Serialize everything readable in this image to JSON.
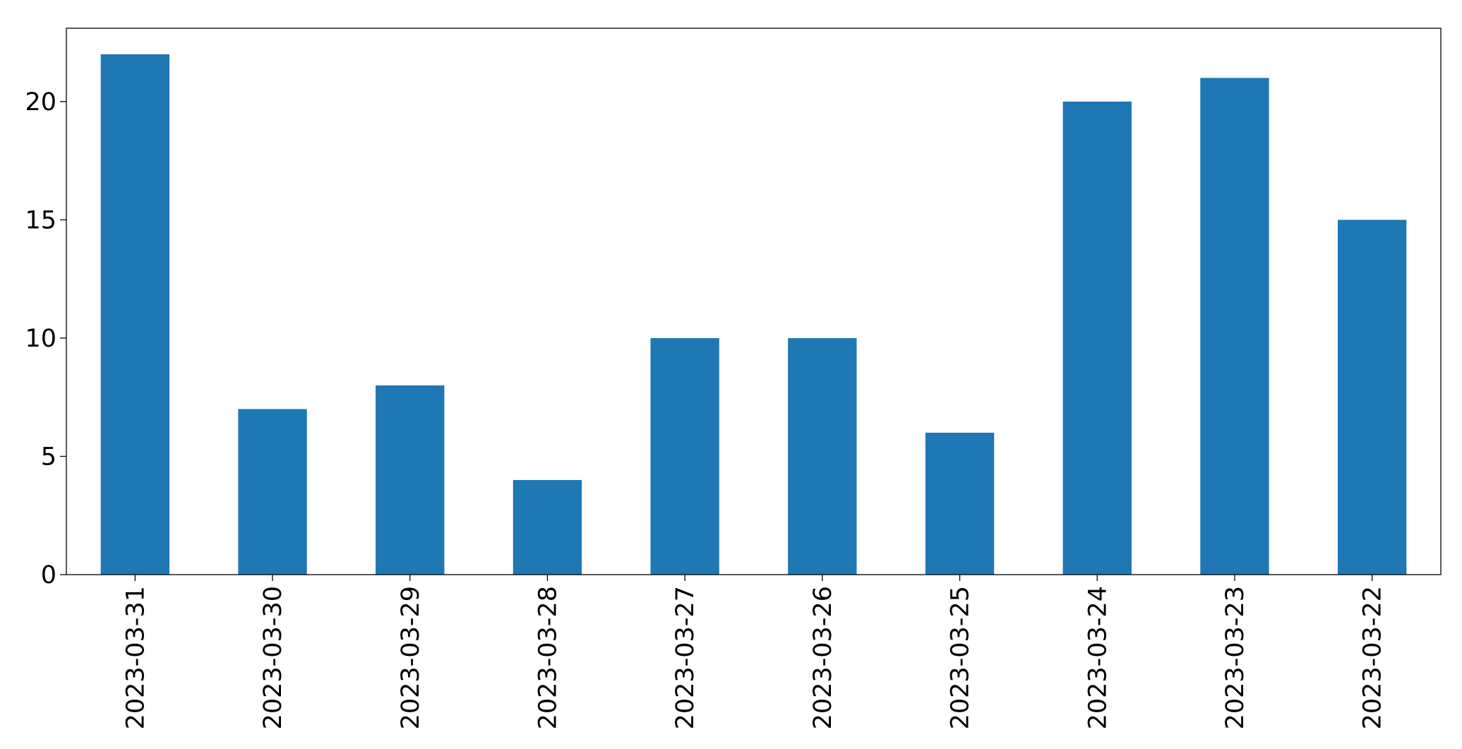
{
  "chart_data": {
    "type": "bar",
    "title": "",
    "xlabel": "",
    "ylabel": "",
    "categories": [
      "2023-03-31",
      "2023-03-30",
      "2023-03-29",
      "2023-03-28",
      "2023-03-27",
      "2023-03-26",
      "2023-03-25",
      "2023-03-24",
      "2023-03-23",
      "2023-03-22"
    ],
    "values": [
      22,
      7,
      8,
      4,
      10,
      10,
      6,
      20,
      21,
      15
    ],
    "ylim": [
      0,
      23.1
    ],
    "yticks": [
      0,
      5,
      10,
      15,
      20
    ],
    "grid": false,
    "legend": "none",
    "bar_color": "#1f77b4"
  }
}
